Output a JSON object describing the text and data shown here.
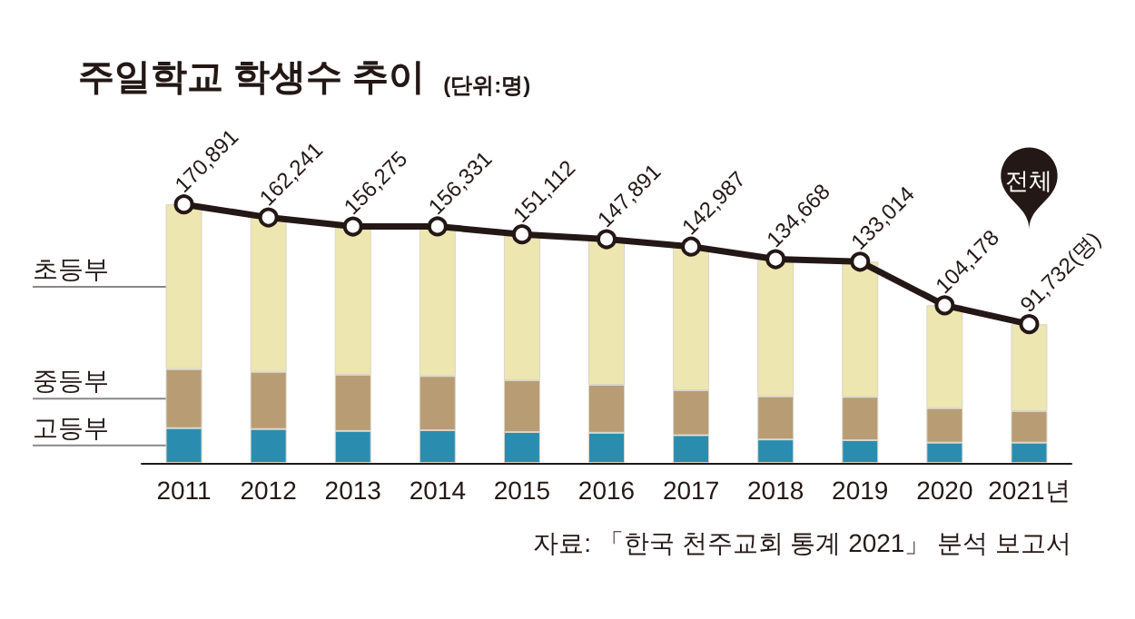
{
  "chart_data": {
    "type": "bar",
    "title": "주일학교 학생수 추이",
    "subtitle": "(단위:명)",
    "annotations": [
      "자료: 「한국 천주교회 통계 2021」 분석 보고서"
    ],
    "categories": [
      "2011",
      "2012",
      "2013",
      "2014",
      "2015",
      "2016",
      "2017",
      "2018",
      "2019",
      "2020",
      "2021년"
    ],
    "stacked": true,
    "marker": "circle",
    "series": [
      {
        "name": "고등부",
        "color": "#2a8db0",
        "values": [
          23000,
          22400,
          21100,
          21600,
          20400,
          19900,
          18300,
          15500,
          15000,
          13400,
          13400
        ]
      },
      {
        "name": "중등부",
        "color": "#b89c74",
        "values": [
          39000,
          37800,
          37100,
          35800,
          34200,
          31700,
          29700,
          28500,
          28600,
          22800,
          20800
        ]
      },
      {
        "name": "초등부",
        "color": "#ede6b0",
        "values": [
          108900,
          102000,
          98100,
          98900,
          96500,
          96300,
          95000,
          90700,
          89400,
          68000,
          57500
        ]
      },
      {
        "name": "전체",
        "type": "line",
        "color": "#231815",
        "values": [
          170891,
          162241,
          156275,
          156331,
          151112,
          147891,
          142987,
          134668,
          133014,
          104178,
          91732
        ],
        "value_labels": [
          "170,891",
          "162,241",
          "156,275",
          "156,331",
          "151,112",
          "147,891",
          "142,987",
          "134,668",
          "133,014",
          "104,178",
          "91,732(명)"
        ]
      }
    ]
  }
}
